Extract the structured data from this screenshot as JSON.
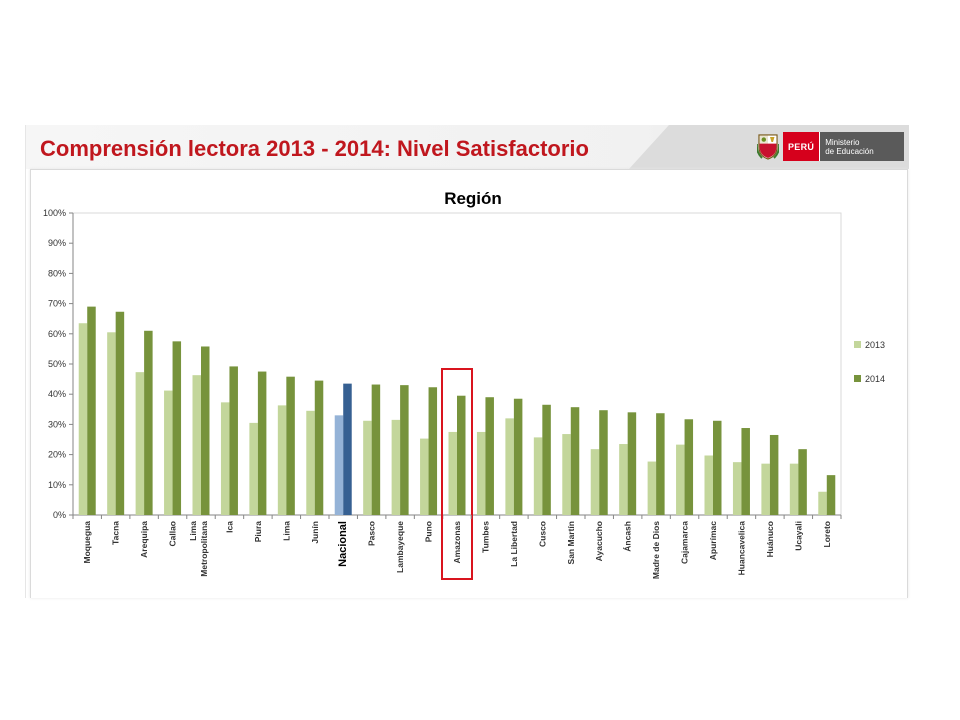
{
  "slide": {
    "title": "Comprensión lectora 2013 - 2014: Nivel Satisfactorio",
    "logo": {
      "country": "PERÚ",
      "ministry_line1": "Ministerio",
      "ministry_line2": "de Educación",
      "icon": "coat-of-arms-icon"
    }
  },
  "chart_data": {
    "type": "bar",
    "title": "Región",
    "xlabel": "",
    "ylabel": "",
    "ylim": [
      0,
      100
    ],
    "yticks": [
      "0%",
      "10%",
      "20%",
      "30%",
      "40%",
      "50%",
      "60%",
      "70%",
      "80%",
      "90%",
      "100%"
    ],
    "grid": false,
    "legend_position": "right",
    "categories": [
      "Moquegua",
      "Tacna",
      "Arequipa",
      "Callao",
      "Lima Metropolitana",
      "Ica",
      "Piura",
      "Lima",
      "Junín",
      "Nacional",
      "Pasco",
      "Lambayeque",
      "Puno",
      "Amazonas",
      "Tumbes",
      "La Libertad",
      "Cusco",
      "San Martín",
      "Ayacucho",
      "Áncash",
      "Madre de Dios",
      "Cajamarca",
      "Apurímac",
      "Huancavelica",
      "Huánuco",
      "Ucayali",
      "Loreto"
    ],
    "series": [
      {
        "name": "2013",
        "color": "#c3d69b",
        "values": [
          63.5,
          60.5,
          47.3,
          41.2,
          46.3,
          37.3,
          30.5,
          36.3,
          34.5,
          33.0,
          31.2,
          31.5,
          25.3,
          27.5,
          27.5,
          32.0,
          25.7,
          26.8,
          21.8,
          23.5,
          17.7,
          23.3,
          19.7,
          17.5,
          17.0,
          17.0,
          7.7
        ]
      },
      {
        "name": "2014",
        "color": "#77933c",
        "values": [
          69.0,
          67.3,
          61.0,
          57.5,
          55.8,
          49.2,
          47.5,
          45.8,
          44.5,
          43.5,
          43.2,
          43.0,
          42.3,
          39.5,
          39.0,
          38.5,
          36.5,
          35.7,
          34.7,
          34.0,
          33.7,
          31.7,
          31.2,
          28.8,
          26.5,
          21.8,
          13.2
        ]
      }
    ],
    "highlight": {
      "category": "Nacional",
      "colors": {
        "2013": "#95b3d7",
        "2014": "#366092"
      }
    },
    "boxed_category": "Amazonas",
    "box_color": "#d9141e"
  }
}
